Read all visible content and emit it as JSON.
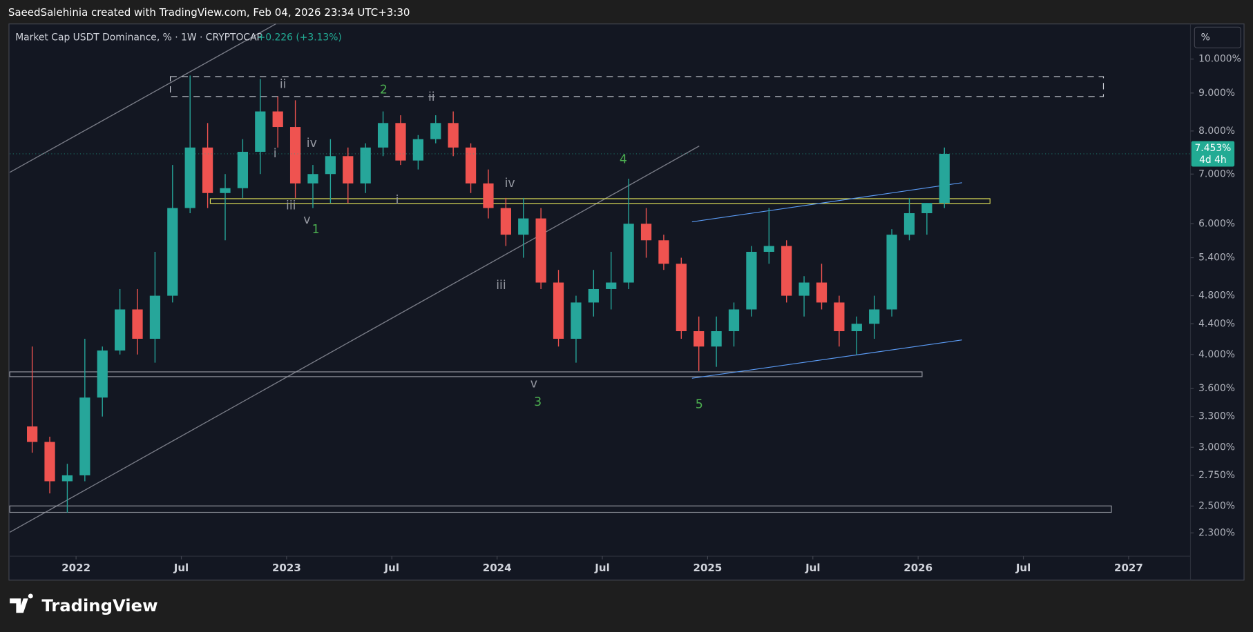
{
  "header": "SaeedSalehinia created with TradingView.com, Feb 04, 2026 23:34 UTC+3:30",
  "footer_logo": "TradingView",
  "chart_data": {
    "type": "candlestick",
    "title": "Market Cap USDT Dominance, % · 1W · CRYPTOCAP",
    "change": "+0.226 (+3.13%)",
    "scale_button": "%",
    "log_scale": true,
    "grid": false,
    "up_color": "#26a69a",
    "down_color": "#ef5350",
    "x": [
      "2021-10",
      "2021-11",
      "2021-12",
      "2022-01",
      "2022-02",
      "2022-03",
      "2022-04",
      "2022-05",
      "2022-06",
      "2022-07",
      "2022-08",
      "2022-09",
      "2022-10",
      "2022-11",
      "2022-12",
      "2023-01",
      "2023-02",
      "2023-03",
      "2023-04",
      "2023-05",
      "2023-06",
      "2023-07",
      "2023-08",
      "2023-09",
      "2023-10",
      "2023-11",
      "2023-12",
      "2024-01",
      "2024-02",
      "2024-03",
      "2024-04",
      "2024-05",
      "2024-06",
      "2024-07",
      "2024-08",
      "2024-09",
      "2024-10",
      "2024-11",
      "2024-12",
      "2025-01",
      "2025-02",
      "2025-03",
      "2025-04",
      "2025-05",
      "2025-06",
      "2025-07",
      "2025-08",
      "2025-09",
      "2025-10",
      "2025-11",
      "2025-12",
      "2026-01",
      "2026-02"
    ],
    "open": [
      3.2,
      3.05,
      2.7,
      2.75,
      3.5,
      4.05,
      4.6,
      4.2,
      4.8,
      6.3,
      7.6,
      6.6,
      6.7,
      7.5,
      8.5,
      8.1,
      6.8,
      7.0,
      7.4,
      6.8,
      7.6,
      8.2,
      7.3,
      7.8,
      8.2,
      7.6,
      6.8,
      6.3,
      5.8,
      6.1,
      5.0,
      4.2,
      4.7,
      4.9,
      5.0,
      6.0,
      5.7,
      5.3,
      4.3,
      4.1,
      4.3,
      4.6,
      5.5,
      5.6,
      4.8,
      5.0,
      4.7,
      4.3,
      4.4,
      4.6,
      5.8,
      6.2,
      6.4
    ],
    "high": [
      4.1,
      3.1,
      2.85,
      4.2,
      4.1,
      4.9,
      4.9,
      5.5,
      7.2,
      9.5,
      8.2,
      7.0,
      7.8,
      9.4,
      8.9,
      8.8,
      7.2,
      7.8,
      7.6,
      7.7,
      8.5,
      8.4,
      7.9,
      8.4,
      8.5,
      7.7,
      7.1,
      6.5,
      6.5,
      6.3,
      5.2,
      4.8,
      5.2,
      5.5,
      6.9,
      6.3,
      5.8,
      5.4,
      4.5,
      4.5,
      4.7,
      5.6,
      6.3,
      5.7,
      5.1,
      5.3,
      4.8,
      4.5,
      4.8,
      5.9,
      6.5,
      6.4,
      7.6
    ],
    "low": [
      2.95,
      2.6,
      2.45,
      2.7,
      3.3,
      4.0,
      4.0,
      3.9,
      4.7,
      6.2,
      6.3,
      5.7,
      6.5,
      7.0,
      7.6,
      6.5,
      6.3,
      6.4,
      6.4,
      6.6,
      7.4,
      7.2,
      7.1,
      7.7,
      7.4,
      6.6,
      6.1,
      5.6,
      5.4,
      4.9,
      4.1,
      3.9,
      4.5,
      4.6,
      4.9,
      5.4,
      5.2,
      4.2,
      3.8,
      3.85,
      4.1,
      4.5,
      5.3,
      4.7,
      4.5,
      4.6,
      4.1,
      4.0,
      4.2,
      4.5,
      5.7,
      5.8,
      6.3
    ],
    "close": [
      3.05,
      2.7,
      2.75,
      3.5,
      4.05,
      4.6,
      4.2,
      4.8,
      6.3,
      7.6,
      6.6,
      6.7,
      7.5,
      8.5,
      8.1,
      6.8,
      7.0,
      7.4,
      6.8,
      7.6,
      8.2,
      7.3,
      7.8,
      8.2,
      7.6,
      6.8,
      6.3,
      5.8,
      6.1,
      5.0,
      4.2,
      4.7,
      4.9,
      5.0,
      6.0,
      5.7,
      5.3,
      4.3,
      4.1,
      4.3,
      4.6,
      5.5,
      5.6,
      4.8,
      5.0,
      4.7,
      4.3,
      4.4,
      4.6,
      5.8,
      6.2,
      6.4,
      7.453
    ],
    "last_value_label": "7.453%",
    "countdown": "4d 4h",
    "xlim": [
      2021.685,
      2027.294
    ],
    "xticks": [
      2022,
      {
        "value": 2022.5,
        "label": "Jul"
      },
      2023,
      {
        "value": 2023.5,
        "label": "Jul"
      },
      2024,
      {
        "value": 2024.5,
        "label": "Jul"
      },
      2025,
      {
        "value": 2025.5,
        "label": "Jul"
      },
      2026,
      {
        "value": 2026.5,
        "label": "Jul"
      },
      2027
    ],
    "ylim": [
      2.14,
      11.15
    ],
    "yticks": [
      {
        "value": 10,
        "label": "10.000%"
      },
      {
        "value": 9,
        "label": "9.000%"
      },
      {
        "value": 8,
        "label": "8.000%"
      },
      {
        "value": 7,
        "label": "7.000%"
      },
      {
        "value": 6,
        "label": "6.000%"
      },
      {
        "value": 5.4,
        "label": "5.400%"
      },
      {
        "value": 4.8,
        "label": "4.800%"
      },
      {
        "value": 4.4,
        "label": "4.400%"
      },
      {
        "value": 4,
        "label": "4.000%"
      },
      {
        "value": 3.6,
        "label": "3.600%"
      },
      {
        "value": 3.3,
        "label": "3.300%"
      },
      {
        "value": 3,
        "label": "3.000%"
      },
      {
        "value": 2.75,
        "label": "2.750%"
      },
      {
        "value": 2.5,
        "label": "2.500%"
      },
      {
        "value": 2.3,
        "label": "2.300%"
      }
    ],
    "annotations": [
      "ii",
      "2",
      "ii",
      "i",
      "iv",
      "iii",
      "v",
      "1",
      "i",
      "iv",
      "4",
      "iii",
      "v",
      "3",
      "5"
    ]
  }
}
